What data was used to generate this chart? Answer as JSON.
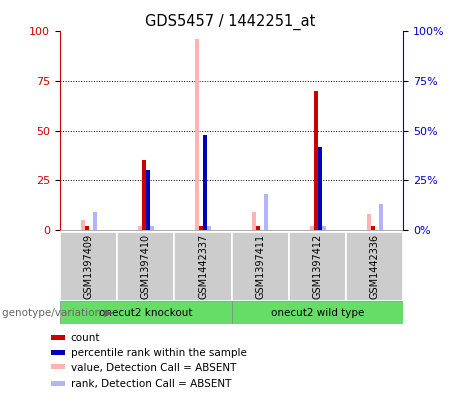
{
  "title": "GDS5457 / 1442251_at",
  "samples": [
    "GSM1397409",
    "GSM1397410",
    "GSM1442337",
    "GSM1397411",
    "GSM1397412",
    "GSM1442336"
  ],
  "groups": [
    {
      "label": "onecut2 knockout",
      "start": 0,
      "end": 3
    },
    {
      "label": "onecut2 wild type",
      "start": 3,
      "end": 6
    }
  ],
  "red_count": [
    2,
    35,
    2,
    2,
    70,
    2
  ],
  "blue_rank": [
    0,
    30,
    48,
    0,
    42,
    0
  ],
  "pink_value": [
    5,
    2,
    96,
    9,
    2,
    8
  ],
  "lightblue_rank": [
    9,
    2,
    2,
    18,
    2,
    13
  ],
  "red_color": "#cc0000",
  "blue_color": "#0000bb",
  "pink_color": "#ffb3b3",
  "lightblue_color": "#b3b3ff",
  "left_axis_color": "#cc0000",
  "right_axis_color": "#0000cc",
  "group_color": "#66dd66",
  "sample_bg": "#cccccc",
  "ylim": [
    0,
    100
  ],
  "yticks": [
    0,
    25,
    50,
    75,
    100
  ],
  "group_label": "genotype/variation",
  "legend_items": [
    {
      "color": "#cc0000",
      "label": "count"
    },
    {
      "color": "#0000bb",
      "label": "percentile rank within the sample"
    },
    {
      "color": "#ffb3b3",
      "label": "value, Detection Call = ABSENT"
    },
    {
      "color": "#b3b3ff",
      "label": "rank, Detection Call = ABSENT"
    }
  ]
}
